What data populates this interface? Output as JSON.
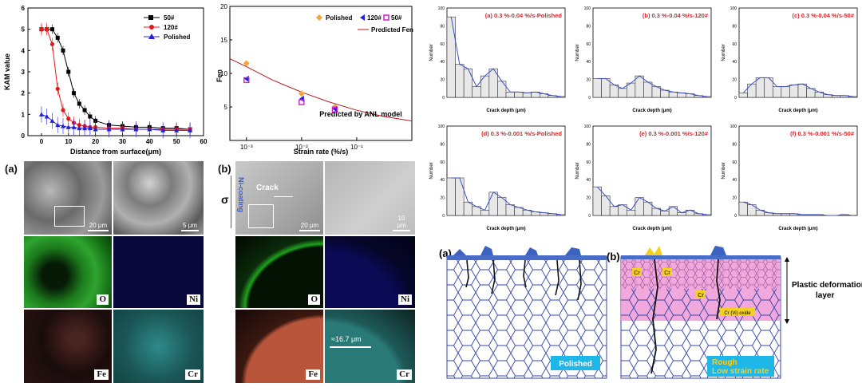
{
  "kam_chart": {
    "ylabel": "KAM value",
    "xlabel": "Distance from surface(μm)",
    "xticks": [
      "0",
      "10",
      "20",
      "30",
      "40",
      "50",
      "60"
    ],
    "yticks": [
      "0",
      "1",
      "2",
      "3",
      "4",
      "5",
      "6"
    ],
    "legend": [
      "50#",
      "120#",
      "Polished"
    ]
  },
  "fen_chart": {
    "ylabel": "Fen",
    "xlabel": "Strain rate (%/s)",
    "xticks": [
      "10⁻³",
      "10⁻²",
      "10⁻¹"
    ],
    "yticks": [
      "5",
      "10",
      "15",
      "20"
    ],
    "legend": [
      "Polished",
      "120#",
      "50#",
      "Predicted Fen"
    ],
    "annotation": "Predicted by ANL model"
  },
  "hist_titles": [
    "(a) 0.3 %-0.04 %/s-Polished",
    "(b) 0.3 %-0.04 %/s-120#",
    "(c) 0.3 %-0.04 %/s-50#",
    "(d) 0.3 %-0.001 %/s-Polished",
    "(e) 0.3 %-0.001 %/s-120#",
    "(f) 0.3 %-0.001 %/s-50#"
  ],
  "hist_common": {
    "ylabel": "Number",
    "xlabel": "Crack depth (μm)",
    "yticks": [
      "0",
      "10",
      "20",
      "30",
      "40",
      "50",
      "60",
      "70",
      "80",
      "90",
      "100"
    ]
  },
  "micro_left": {
    "label": "(a)",
    "scale1": "20 μm",
    "scale2": "5 μm",
    "maps": [
      "O",
      "Ni",
      "Fe",
      "Cr"
    ]
  },
  "micro_right": {
    "label": "(b)",
    "sigma": "σ",
    "coating": "Ni-coating",
    "crack": "Crack",
    "scale1": "20 μm",
    "scale2": "10 μm",
    "thickness": "≈16.7 μm",
    "maps": [
      "O",
      "Ni",
      "Fe",
      "Cr"
    ]
  },
  "schematic": {
    "a_label": "(a)",
    "b_label": "(b)",
    "polished": "Polished",
    "rough_line1": "Rough",
    "rough_line2": "Low strain rate",
    "cr1": "Cr",
    "cr2": "Cr",
    "cr3": "Cr",
    "oxide": "Cr (Vi) oxide",
    "layer_line1": "Plastic deformation",
    "layer_line2": "layer"
  },
  "chart_data": [
    {
      "type": "line",
      "title": "",
      "xlabel": "Distance from surface(μm)",
      "ylabel": "KAM value",
      "xlim": [
        -5,
        60
      ],
      "ylim": [
        0,
        6
      ],
      "series": [
        {
          "name": "50#",
          "x": [
            0,
            2,
            4,
            6,
            8,
            10,
            12,
            14,
            16,
            18,
            20,
            25,
            30,
            35,
            40,
            45,
            50,
            55
          ],
          "y": [
            5,
            5,
            5,
            4.6,
            4,
            3,
            2,
            1.5,
            1.2,
            0.9,
            0.7,
            0.5,
            0.45,
            0.4,
            0.4,
            0.35,
            0.35,
            0.3
          ]
        },
        {
          "name": "120#",
          "x": [
            0,
            2,
            4,
            6,
            8,
            10,
            12,
            14,
            16,
            18,
            20,
            25,
            30,
            35,
            40,
            45,
            50,
            55
          ],
          "y": [
            5,
            5,
            4.3,
            2.2,
            1.2,
            0.8,
            0.6,
            0.5,
            0.45,
            0.4,
            0.4,
            0.35,
            0.35,
            0.3,
            0.3,
            0.3,
            0.3,
            0.3
          ]
        },
        {
          "name": "Polished",
          "x": [
            0,
            2,
            4,
            6,
            8,
            10,
            12,
            14,
            16,
            18,
            20,
            25,
            30,
            35,
            40,
            45,
            50,
            55
          ],
          "y": [
            1.0,
            0.9,
            0.7,
            0.5,
            0.45,
            0.4,
            0.4,
            0.35,
            0.35,
            0.35,
            0.3,
            0.3,
            0.3,
            0.3,
            0.3,
            0.25,
            0.25,
            0.25
          ]
        }
      ]
    },
    {
      "type": "scatter",
      "title": "",
      "xlabel": "Strain rate (%/s)",
      "ylabel": "Fen",
      "x_scale": "log",
      "xlim": [
        0.0005,
        1
      ],
      "ylim": [
        0,
        20
      ],
      "series": [
        {
          "name": "Polished",
          "x": [
            0.001,
            0.01,
            0.04
          ],
          "y": [
            11.5,
            7.0,
            5.0
          ]
        },
        {
          "name": "120#",
          "x": [
            0.001,
            0.01,
            0.04
          ],
          "y": [
            9.2,
            6.2,
            4.7
          ]
        },
        {
          "name": "50#",
          "x": [
            0.001,
            0.01,
            0.04
          ],
          "y": [
            9.0,
            5.7,
            4.6
          ]
        },
        {
          "name": "Predicted Fen",
          "x": [
            0.0005,
            0.001,
            0.003,
            0.01,
            0.03,
            0.1,
            0.3,
            1
          ],
          "y": [
            12.2,
            11.0,
            9.0,
            7.2,
            5.8,
            4.5,
            3.6,
            2.9
          ]
        }
      ]
    },
    {
      "type": "bar",
      "title": "(a) 0.3 %-0.04 %/s-Polished",
      "xlabel": "Crack depth (μm)",
      "ylabel": "Number",
      "ylim": [
        0,
        100
      ],
      "values": [
        90,
        37,
        32,
        12,
        24,
        32,
        18,
        6,
        6,
        5,
        6,
        4,
        2,
        1
      ]
    },
    {
      "type": "bar",
      "title": "(b) 0.3 %-0.04 %/s-120#",
      "xlabel": "Crack depth (μm)",
      "ylabel": "Number",
      "ylim": [
        0,
        100
      ],
      "values": [
        21,
        21,
        14,
        10,
        16,
        24,
        17,
        12,
        8,
        6,
        5,
        4,
        2,
        1
      ]
    },
    {
      "type": "bar",
      "title": "(c) 0.3 %-0.04 %/s-50#",
      "xlabel": "Crack depth (μm)",
      "ylabel": "Number",
      "ylim": [
        0,
        100
      ],
      "values": [
        5,
        15,
        22,
        22,
        12,
        12,
        14,
        15,
        10,
        6,
        3,
        2,
        2,
        1
      ]
    },
    {
      "type": "bar",
      "title": "(d) 0.3 %-0.001 %/s-Polished",
      "xlabel": "Crack depth (μm)",
      "ylabel": "Number",
      "ylim": [
        0,
        100
      ],
      "values": [
        42,
        42,
        15,
        10,
        6,
        26,
        20,
        12,
        9,
        6,
        4,
        3,
        2,
        1
      ]
    },
    {
      "type": "bar",
      "title": "(e) 0.3 %-0.001 %/s-120#",
      "xlabel": "Crack depth (μm)",
      "ylabel": "Number",
      "ylim": [
        0,
        100
      ],
      "values": [
        32,
        22,
        10,
        12,
        6,
        20,
        15,
        8,
        5,
        10,
        3,
        6,
        2,
        1
      ]
    },
    {
      "type": "bar",
      "title": "(f) 0.3 %-0.001 %/s-50#",
      "xlabel": "Crack depth (μm)",
      "ylabel": "Number",
      "ylim": [
        0,
        100
      ],
      "values": [
        15,
        12,
        6,
        3,
        2,
        2,
        2,
        1,
        1,
        1,
        0,
        0,
        1,
        0
      ]
    }
  ],
  "colors": {
    "s50": "#000000",
    "s120": "#e31a1c",
    "polished": "#2020e0",
    "fen_curve": "#c0161a",
    "orange": "#f7a440",
    "magenta": "#d21cd2",
    "hist_title": "#d9262b",
    "hist_curve": "#3a4fc7",
    "cyan": "#1fb6e8",
    "pink": "#ef9ed9"
  }
}
